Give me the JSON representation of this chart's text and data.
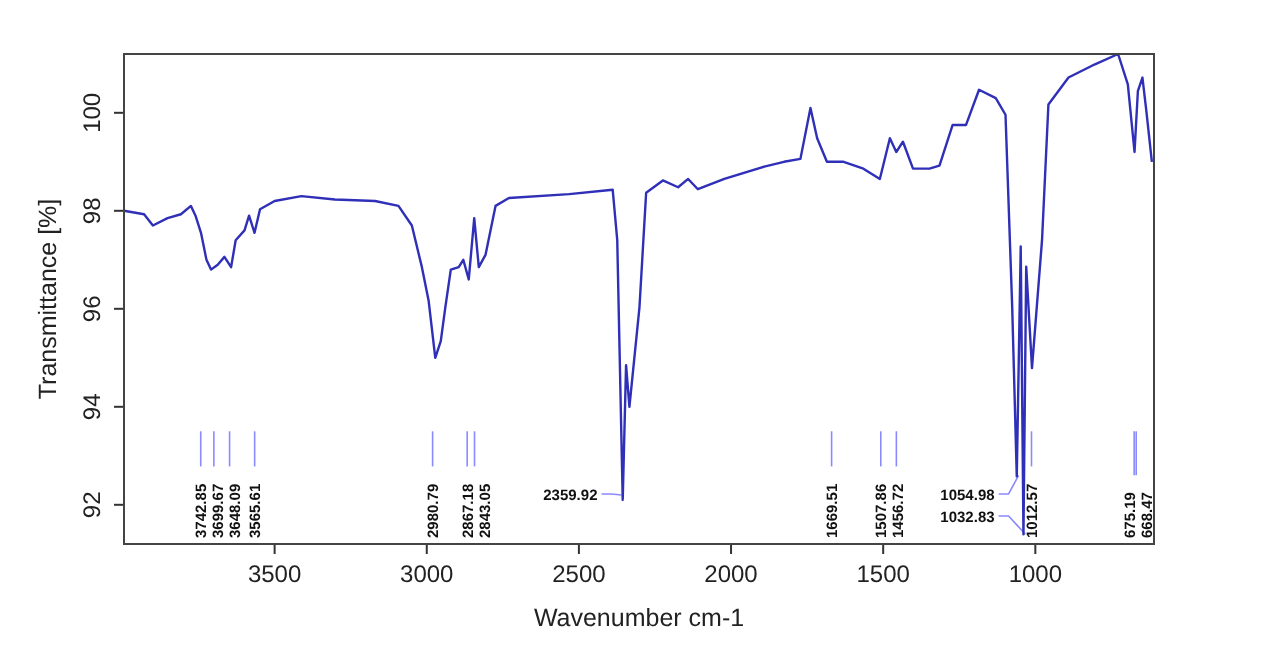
{
  "chart_data": {
    "type": "line",
    "xlabel": "Wavenumber cm-1",
    "ylabel": "Transmittance [%]",
    "xlim": [
      3995,
      610
    ],
    "ylim": [
      91.2,
      101.2
    ],
    "xticks": [
      3500,
      3000,
      2500,
      2000,
      1500,
      1000
    ],
    "yticks": [
      92,
      94,
      96,
      98,
      100
    ],
    "grid": false,
    "marker": "none",
    "line_style": "solid",
    "series": [
      {
        "color": "#2f2fb8",
        "x": [
          3995,
          3929,
          3900,
          3852,
          3808,
          3775,
          3760,
          3742,
          3724,
          3709,
          3687,
          3665,
          3643,
          3628,
          3599,
          3584,
          3566,
          3548,
          3500,
          3412,
          3302,
          3170,
          3093,
          3049,
          3016,
          2994,
          2972,
          2954,
          2939,
          2921,
          2895,
          2880,
          2862,
          2844,
          2829,
          2807,
          2774,
          2730,
          2532,
          2389,
          2374,
          2356,
          2345,
          2334,
          2301,
          2279,
          2224,
          2174,
          2141,
          2109,
          2022,
          1891,
          1826,
          1772,
          1739,
          1717,
          1685,
          1630,
          1565,
          1511,
          1478,
          1457,
          1435,
          1402,
          1348,
          1315,
          1272,
          1228,
          1185,
          1130,
          1098,
          1076,
          1061,
          1048,
          1039,
          1030,
          1011,
          978,
          957,
          891,
          804,
          728,
          696,
          674,
          663,
          648,
          635,
          617
        ],
        "values": [
          98.0,
          97.93,
          97.7,
          97.85,
          97.93,
          98.1,
          97.9,
          97.55,
          97.0,
          96.8,
          96.9,
          97.06,
          96.85,
          97.4,
          97.6,
          97.9,
          97.55,
          98.03,
          98.2,
          98.3,
          98.23,
          98.2,
          98.1,
          97.7,
          96.85,
          96.17,
          95.0,
          95.34,
          96.03,
          96.8,
          96.85,
          97.0,
          96.6,
          97.85,
          96.85,
          97.1,
          98.1,
          98.26,
          98.34,
          98.43,
          97.4,
          92.1,
          94.85,
          94.0,
          96.03,
          98.37,
          98.62,
          98.48,
          98.65,
          98.44,
          98.65,
          98.9,
          99.0,
          99.06,
          100.1,
          99.48,
          99.0,
          99.0,
          98.86,
          98.65,
          99.48,
          99.2,
          99.41,
          98.86,
          98.86,
          98.92,
          99.75,
          99.75,
          100.47,
          100.3,
          99.96,
          96.03,
          92.58,
          97.27,
          91.4,
          96.86,
          94.79,
          97.4,
          100.17,
          100.72,
          100.99,
          101.2,
          100.58,
          99.2,
          100.44,
          100.72,
          100.03,
          99.0
        ]
      }
    ],
    "annotations": [
      {
        "text": "2359.92",
        "x": 2359.92,
        "y": 92.2
      },
      {
        "text": "1054.98",
        "x": 1054.98,
        "y": 92.6
      },
      {
        "text": "1032.83",
        "x": 1032.83,
        "y": 91.4
      }
    ],
    "ref_lines": [
      {
        "axis": "x",
        "value": 3742.85,
        "label": "3742.85"
      },
      {
        "axis": "x",
        "value": 3699.67,
        "label": "3699.67"
      },
      {
        "axis": "x",
        "value": 3648.09,
        "label": "3648.09"
      },
      {
        "axis": "x",
        "value": 3565.61,
        "label": "3565.61"
      },
      {
        "axis": "x",
        "value": 2980.79,
        "label": "2980.79"
      },
      {
        "axis": "x",
        "value": 2867.18,
        "label": "2867.18"
      },
      {
        "axis": "x",
        "value": 2843.05,
        "label": "2843.05"
      },
      {
        "axis": "x",
        "value": 1669.51,
        "label": "1669.51"
      },
      {
        "axis": "x",
        "value": 1507.86,
        "label": "1507.86"
      },
      {
        "axis": "x",
        "value": 1456.72,
        "label": "1456.72"
      },
      {
        "axis": "x",
        "value": 1012.57,
        "label": "1012.57"
      },
      {
        "axis": "x",
        "value": 675.19,
        "label": "675.19"
      },
      {
        "axis": "x",
        "value": 668.47,
        "label": "668.47"
      }
    ]
  }
}
